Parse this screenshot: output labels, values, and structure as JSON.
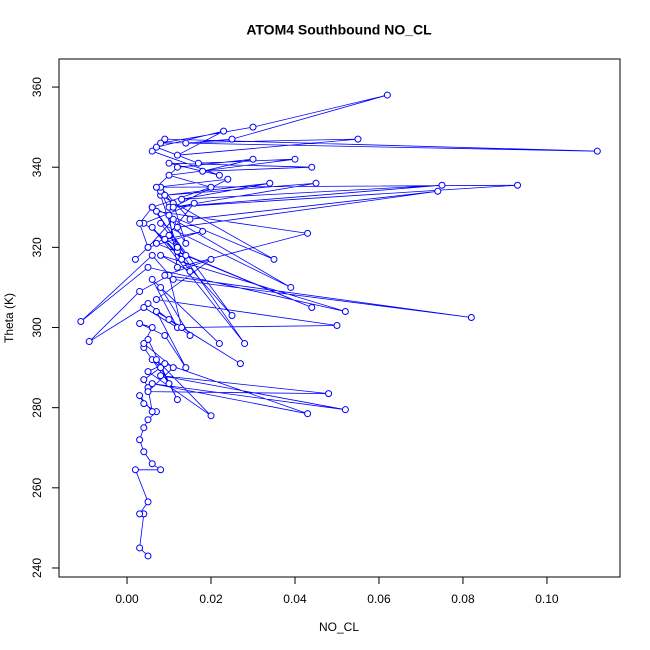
{
  "chart_data": {
    "type": "line",
    "title": "ATOM4 Southbound NO_CL",
    "x_label": "NO_CL",
    "y_label": "Theta (K)",
    "x": [
      0.005,
      0.003,
      0.004,
      0.003,
      0.005,
      0.002,
      0.008,
      0.006,
      0.004,
      0.003,
      0.004,
      0.005,
      0.007,
      0.004,
      0.003,
      0.006,
      0.005,
      0.004,
      0.008,
      0.006,
      0.01,
      0.004,
      0.005,
      0.012,
      0.007,
      0.02,
      0.005,
      0.009,
      0.043,
      0.006,
      0.052,
      0.008,
      0.048,
      0.005,
      0.011,
      0.004,
      0.006,
      0.003,
      0.009,
      0.014,
      0.007,
      0.027,
      0.01,
      0.005,
      0.015,
      0.008,
      0.022,
      0.006,
      0.012,
      0.004,
      -0.009,
      0.003,
      0.01,
      0.013,
      0.05,
      0.007,
      0.02,
      0.009,
      0.082,
      0.011,
      0.006,
      -0.011,
      0.005,
      0.052,
      0.008,
      0.015,
      0.012,
      0.044,
      0.007,
      0.01,
      0.028,
      0.006,
      0.013,
      0.009,
      0.018,
      0.005,
      0.011,
      0.039,
      0.008,
      0.014,
      0.007,
      0.043,
      0.012,
      0.01,
      0.006,
      0.025,
      0.009,
      0.016,
      0.004,
      0.012,
      0.008,
      0.035,
      0.01,
      0.014,
      0.011,
      0.008,
      0.012,
      0.074,
      0.015,
      0.008,
      0.093,
      0.01,
      0.075,
      0.013,
      0.034,
      0.009,
      0.045,
      0.011,
      0.024,
      0.007,
      0.012,
      0.03,
      0.018,
      0.044,
      0.01,
      0.022,
      0.006,
      0.009,
      0.112,
      0.014,
      0.025,
      0.062,
      0.03,
      0.008,
      0.055,
      0.012,
      0.023,
      0.007,
      0.017,
      0.04,
      0.01,
      0.02,
      0.006,
      0.003,
      0.005,
      0.002
    ],
    "series": [
      {
        "color": "#0000ff",
        "values": [
          243,
          245,
          253.5,
          253.5,
          256.5,
          264.5,
          264.5,
          266,
          269,
          272,
          275,
          277,
          279,
          281,
          283,
          279,
          285,
          287,
          290,
          292,
          286,
          295,
          297,
          282,
          292,
          278,
          289,
          291,
          278.5,
          286,
          279.5,
          288,
          283.5,
          284,
          290,
          296,
          300,
          301,
          298,
          290,
          304,
          291,
          302,
          306,
          298,
          310,
          296,
          312,
          300,
          305,
          296.5,
          309,
          313,
          300,
          300.5,
          307,
          317,
          313,
          302.5,
          312,
          318,
          301.5,
          315,
          304,
          318,
          314,
          319,
          305,
          321,
          323,
          296,
          325,
          317,
          322,
          324,
          320,
          327,
          310,
          326,
          318,
          329,
          323.5,
          315,
          328,
          330,
          303,
          322,
          331,
          326,
          320,
          333,
          317,
          328,
          321,
          331,
          334,
          325,
          334,
          327,
          335,
          335.5,
          330,
          335.5,
          332,
          336,
          333,
          336,
          330,
          337,
          335,
          340,
          342,
          339,
          340,
          341,
          338,
          344,
          347,
          344,
          346,
          347,
          358,
          350,
          346,
          347,
          343,
          349,
          345,
          341,
          342,
          338,
          335,
          330,
          326,
          320,
          317
        ]
      }
    ],
    "xlim": [
      -0.0162,
      0.1174
    ],
    "ylim": [
      237.75,
      367
    ],
    "xticks": [
      {
        "value": 0,
        "label": "0.00"
      },
      {
        "value": 0.02,
        "label": "0.02"
      },
      {
        "value": 0.04,
        "label": "0.04"
      },
      {
        "value": 0.06,
        "label": "0.06"
      },
      {
        "value": 0.08,
        "label": "0.08"
      },
      {
        "value": 0.1,
        "label": "0.10"
      }
    ],
    "yticks": [
      240,
      260,
      280,
      300,
      320,
      340,
      360
    ]
  }
}
